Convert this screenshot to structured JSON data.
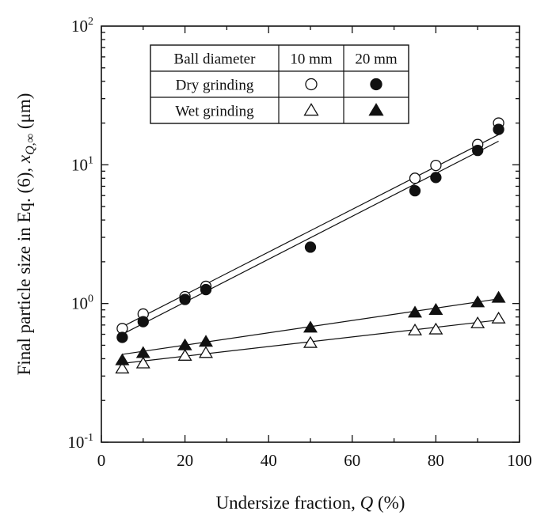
{
  "chart_data": {
    "type": "scatter",
    "xlabel": "Undersize fraction, Q  (%)",
    "ylabel": "Final particle size in Eq. (6), x_Q,∞  (μm)",
    "xlim": [
      0,
      100
    ],
    "ylim": [
      0.1,
      100
    ],
    "yscale": "log",
    "x_ticks": [
      "0",
      "20",
      "40",
      "60",
      "80",
      "100"
    ],
    "y_ticks": [
      {
        "base": "10",
        "exp": "-1"
      },
      {
        "base": "10",
        "exp": "0"
      },
      {
        "base": "10",
        "exp": "1"
      },
      {
        "base": "10",
        "exp": "2"
      }
    ],
    "grid": false,
    "legend": {
      "placement": "top-left",
      "header": [
        "Ball diameter",
        "10 mm",
        "20 mm"
      ],
      "rows": [
        {
          "label": "Dry grinding",
          "markers": [
            "circle-open",
            "circle-filled"
          ]
        },
        {
          "label": "Wet grinding",
          "markers": [
            "triangle-open",
            "triangle-filled"
          ]
        }
      ]
    },
    "series": [
      {
        "marker": "circle-open",
        "x": [
          5,
          10,
          20,
          25,
          75,
          80,
          90,
          95
        ],
        "y": [
          0.66,
          0.84,
          1.12,
          1.33,
          8.0,
          9.9,
          14.0,
          20.0
        ],
        "fit": [
          [
            5,
            0.68
          ],
          [
            95,
            16.5
          ]
        ]
      },
      {
        "marker": "circle-filled",
        "x": [
          5,
          10,
          20,
          25,
          50,
          75,
          80,
          90,
          95
        ],
        "y": [
          0.57,
          0.74,
          1.07,
          1.26,
          2.55,
          6.5,
          8.1,
          12.7,
          18.0
        ],
        "fit": [
          [
            5,
            0.6
          ],
          [
            95,
            14.8
          ]
        ]
      },
      {
        "marker": "triangle-open",
        "x": [
          5,
          10,
          20,
          25,
          50,
          75,
          80,
          90,
          95
        ],
        "y": [
          0.34,
          0.37,
          0.42,
          0.44,
          0.52,
          0.64,
          0.65,
          0.72,
          0.78
        ],
        "fit": [
          [
            5,
            0.37
          ],
          [
            95,
            0.76
          ]
        ]
      },
      {
        "marker": "triangle-filled",
        "x": [
          5,
          10,
          20,
          25,
          50,
          75,
          80,
          90,
          95
        ],
        "y": [
          0.39,
          0.44,
          0.5,
          0.53,
          0.67,
          0.86,
          0.9,
          1.02,
          1.1
        ],
        "fit": [
          [
            5,
            0.43
          ],
          [
            95,
            1.08
          ]
        ]
      }
    ]
  }
}
